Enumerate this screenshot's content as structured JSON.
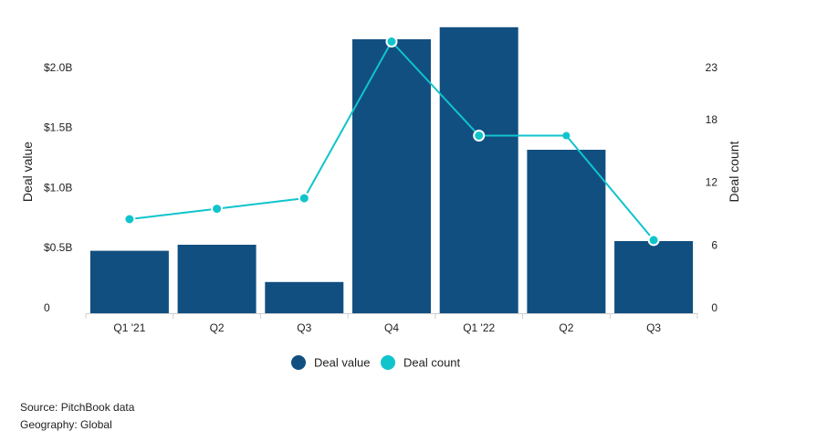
{
  "colors": {
    "bar": "#124f81",
    "line": "#10c4cc",
    "axis": "#cfcfcf"
  },
  "chart_data": {
    "type": "bar",
    "categories": [
      "Q1 '21",
      "Q2",
      "Q3",
      "Q4",
      "Q1 '22",
      "Q2",
      "Q3"
    ],
    "series": [
      {
        "name": "Deal value",
        "type": "bar",
        "axis": "left",
        "values": [
          0.52,
          0.57,
          0.26,
          2.28,
          2.38,
          1.36,
          0.6
        ]
      },
      {
        "name": "Deal count",
        "type": "line",
        "axis": "right",
        "values": [
          9,
          10,
          11,
          26,
          17,
          17,
          7
        ]
      }
    ],
    "xlabel": "",
    "ylabel": "Deal value",
    "y2label": "Deal count",
    "ylim": [
      0,
      2.5
    ],
    "y2lim": [
      0,
      28.75
    ],
    "y_ticks": [
      0,
      0.5,
      1.0,
      1.5,
      2.0
    ],
    "y_tick_labels": [
      "0",
      "$0.5B",
      "$1.0B",
      "$1.5B",
      "$2.0B"
    ],
    "y2_ticks": [
      0,
      6,
      12,
      18,
      23
    ],
    "y2_tick_labels": [
      "0",
      "6",
      "12",
      "18",
      "23"
    ],
    "legend": {
      "position": "bottom",
      "entries": [
        "Deal value",
        "Deal count"
      ]
    },
    "grid": false
  },
  "footer": {
    "source": "Source: PitchBook data",
    "geography": "Geography: Global"
  }
}
